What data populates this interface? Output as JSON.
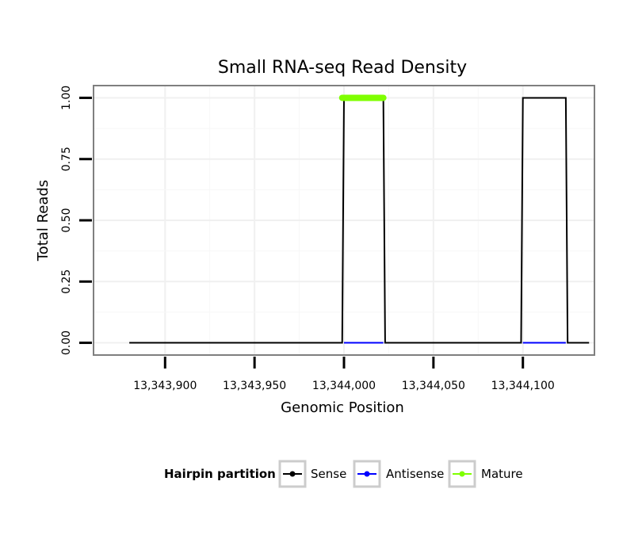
{
  "chart_data": {
    "type": "line",
    "title": "Small RNA-seq Read Density",
    "xlabel": "Genomic Position",
    "ylabel": "Total Reads",
    "xlim": [
      13343860,
      13344140
    ],
    "ylim": [
      -0.05,
      1.05
    ],
    "x_ticks": [
      13343900,
      13343950,
      13344000,
      13344050,
      13344100
    ],
    "x_tick_labels": [
      "13,343,900",
      "13,343,950",
      "13,344,000",
      "13,344,050",
      "13,344,100"
    ],
    "y_ticks": [
      0,
      0.25,
      0.5,
      0.75,
      1.0
    ],
    "y_tick_labels": [
      "0.00",
      "0.25",
      "0.50",
      "0.75",
      "1.00"
    ],
    "grid": true,
    "series": [
      {
        "name": "Sense",
        "color": "#000000",
        "x": [
          13343880,
          13343999,
          13344000,
          13344022,
          13344023,
          13344099,
          13344100,
          13344124,
          13344125,
          13344137
        ],
        "values": [
          0,
          0,
          1,
          1,
          0,
          0,
          1,
          1,
          0,
          0
        ]
      },
      {
        "name": "Antisense",
        "color": "#0000ff",
        "segments": [
          {
            "x": [
              13344000,
              13344022
            ],
            "values": [
              0,
              0
            ]
          },
          {
            "x": [
              13344100,
              13344124
            ],
            "values": [
              0,
              0
            ]
          }
        ]
      },
      {
        "name": "Mature",
        "color": "#7fff00",
        "x": [
          13343999,
          13344022
        ],
        "values": [
          1,
          1
        ]
      }
    ],
    "legend": {
      "title": "Hairpin partition",
      "position": "bottom",
      "entries": [
        "Sense",
        "Antisense",
        "Mature"
      ]
    }
  }
}
